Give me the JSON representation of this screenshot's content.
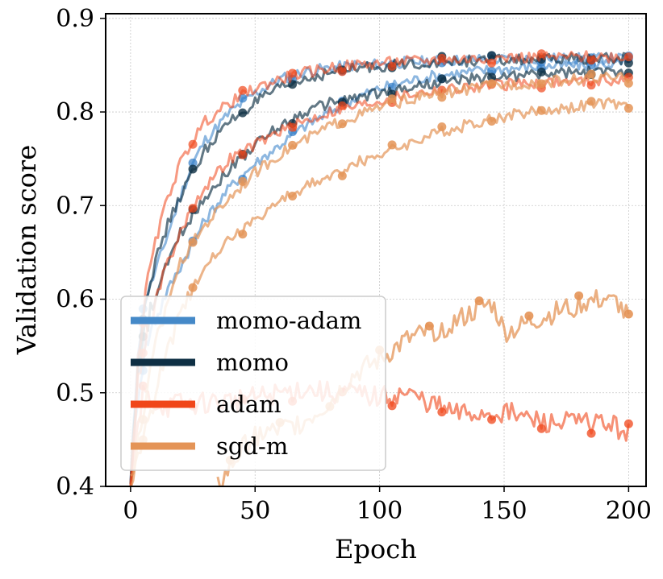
{
  "chart_data": {
    "type": "line",
    "title": "",
    "xlabel": "Epoch",
    "ylabel": "Validation score",
    "xlim": [
      -10,
      207
    ],
    "ylim": [
      0.4,
      0.905
    ],
    "xticks": [
      0,
      50,
      100,
      150,
      200
    ],
    "xtick_labels": [
      "0",
      "50",
      "100",
      "150",
      "200"
    ],
    "yticks": [
      0.4,
      0.5,
      0.6,
      0.7,
      0.8,
      0.9
    ],
    "ytick_labels": [
      "0.4",
      "0.5",
      "0.6",
      "0.7",
      "0.8",
      "0.9"
    ],
    "grid": true,
    "legend_position": "lower-left",
    "legend": [
      {
        "name": "momo-adam",
        "color": "#4589c8"
      },
      {
        "name": "momo",
        "color": "#0e2f44"
      },
      {
        "name": "adam",
        "color": "#f04619"
      },
      {
        "name": "sgd-m",
        "color": "#e49457"
      }
    ],
    "series": [
      {
        "name": "momo-adam",
        "color": "#2f7bc6",
        "alpha": 0.55,
        "x": [
          0,
          3,
          6,
          10,
          15,
          20,
          25,
          30,
          40,
          50,
          60,
          70,
          80,
          90,
          100,
          110,
          120,
          130,
          140,
          150,
          160,
          170,
          180,
          190,
          200
        ],
        "y": [
          0.4,
          0.55,
          0.6,
          0.63,
          0.67,
          0.71,
          0.745,
          0.77,
          0.8,
          0.82,
          0.835,
          0.843,
          0.847,
          0.85,
          0.851,
          0.853,
          0.854,
          0.855,
          0.856,
          0.856,
          0.857,
          0.857,
          0.857,
          0.857,
          0.857
        ]
      },
      {
        "name": "momo-adam",
        "color": "#2f7bc6",
        "alpha": 0.55,
        "x": [
          0,
          3,
          6,
          10,
          15,
          20,
          25,
          30,
          40,
          50,
          60,
          70,
          80,
          90,
          100,
          110,
          120,
          130,
          140,
          150,
          160,
          170,
          180,
          190,
          200
        ],
        "y": [
          0.4,
          0.5,
          0.55,
          0.58,
          0.61,
          0.635,
          0.66,
          0.685,
          0.72,
          0.745,
          0.765,
          0.785,
          0.8,
          0.815,
          0.825,
          0.832,
          0.838,
          0.841,
          0.844,
          0.846,
          0.848,
          0.849,
          0.85,
          0.851,
          0.852
        ]
      },
      {
        "name": "momo",
        "color": "#0e2f44",
        "alpha": 0.65,
        "x": [
          0,
          3,
          6,
          10,
          15,
          20,
          25,
          30,
          40,
          50,
          60,
          70,
          80,
          90,
          100,
          110,
          120,
          130,
          140,
          150,
          160,
          170,
          180,
          190,
          200
        ],
        "y": [
          0.4,
          0.54,
          0.6,
          0.64,
          0.68,
          0.71,
          0.735,
          0.76,
          0.79,
          0.81,
          0.825,
          0.835,
          0.842,
          0.846,
          0.849,
          0.851,
          0.853,
          0.854,
          0.855,
          0.855,
          0.856,
          0.856,
          0.857,
          0.857,
          0.857
        ]
      },
      {
        "name": "momo",
        "color": "#0e2f44",
        "alpha": 0.65,
        "x": [
          0,
          3,
          6,
          10,
          15,
          20,
          25,
          30,
          40,
          50,
          60,
          70,
          80,
          90,
          100,
          110,
          120,
          130,
          140,
          150,
          160,
          170,
          180,
          190,
          200
        ],
        "y": [
          0.4,
          0.52,
          0.57,
          0.6,
          0.64,
          0.67,
          0.69,
          0.71,
          0.74,
          0.765,
          0.785,
          0.8,
          0.81,
          0.815,
          0.82,
          0.825,
          0.83,
          0.833,
          0.836,
          0.838,
          0.84,
          0.841,
          0.842,
          0.843,
          0.844
        ]
      },
      {
        "name": "adam",
        "color": "#f04619",
        "alpha": 0.55,
        "x": [
          0,
          3,
          6,
          10,
          15,
          20,
          25,
          30,
          40,
          50,
          60,
          70,
          80,
          90,
          100,
          110,
          120,
          130,
          140,
          150,
          160,
          170,
          180,
          190,
          200
        ],
        "y": [
          0.4,
          0.53,
          0.61,
          0.66,
          0.71,
          0.745,
          0.77,
          0.79,
          0.81,
          0.825,
          0.835,
          0.842,
          0.847,
          0.85,
          0.852,
          0.854,
          0.855,
          0.856,
          0.857,
          0.858,
          0.858,
          0.858,
          0.859,
          0.859,
          0.859
        ]
      },
      {
        "name": "adam",
        "color": "#f04619",
        "alpha": 0.55,
        "x": [
          0,
          3,
          6,
          10,
          15,
          20,
          25,
          30,
          40,
          50,
          60,
          70,
          80,
          90,
          100,
          110,
          120,
          130,
          140,
          150,
          160,
          170,
          180,
          190,
          200
        ],
        "y": [
          0.4,
          0.51,
          0.56,
          0.6,
          0.64,
          0.67,
          0.7,
          0.72,
          0.75,
          0.765,
          0.78,
          0.79,
          0.8,
          0.806,
          0.812,
          0.818,
          0.822,
          0.825,
          0.827,
          0.829,
          0.831,
          0.832,
          0.833,
          0.834,
          0.835
        ]
      },
      {
        "name": "adam",
        "color": "#f04619",
        "alpha": 0.6,
        "x": [
          0,
          5,
          10,
          15,
          20,
          25,
          30,
          40,
          50,
          60,
          70,
          80,
          90,
          100,
          110,
          120,
          130,
          140,
          150,
          160,
          170,
          180,
          190,
          200
        ],
        "y": [
          0.4,
          0.5,
          0.49,
          0.485,
          0.49,
          0.488,
          0.49,
          0.492,
          0.495,
          0.5,
          0.505,
          0.5,
          0.5,
          0.495,
          0.5,
          0.49,
          0.478,
          0.478,
          0.48,
          0.472,
          0.467,
          0.468,
          0.469,
          0.458
        ]
      },
      {
        "name": "sgd-m",
        "color": "#e49457",
        "alpha": 0.7,
        "x": [
          0,
          5,
          10,
          15,
          20,
          25,
          30,
          40,
          50,
          60,
          70,
          80,
          90,
          100,
          110,
          120,
          130,
          140,
          150,
          160,
          170,
          180,
          190,
          200
        ],
        "y": [
          0.4,
          0.48,
          0.55,
          0.6,
          0.64,
          0.66,
          0.68,
          0.71,
          0.735,
          0.755,
          0.77,
          0.785,
          0.795,
          0.805,
          0.812,
          0.818,
          0.822,
          0.826,
          0.829,
          0.831,
          0.833,
          0.835,
          0.836,
          0.836
        ]
      },
      {
        "name": "sgd-m",
        "color": "#e49457",
        "alpha": 0.7,
        "x": [
          0,
          5,
          10,
          15,
          20,
          25,
          30,
          40,
          50,
          60,
          70,
          80,
          90,
          100,
          110,
          120,
          130,
          140,
          150,
          160,
          170,
          180,
          190,
          200
        ],
        "y": [
          0.4,
          0.45,
          0.5,
          0.55,
          0.58,
          0.61,
          0.64,
          0.665,
          0.685,
          0.705,
          0.72,
          0.73,
          0.745,
          0.755,
          0.765,
          0.775,
          0.782,
          0.79,
          0.795,
          0.8,
          0.803,
          0.806,
          0.809,
          0.807
        ]
      },
      {
        "name": "sgd-m",
        "color": "#e49457",
        "alpha": 0.75,
        "x": [
          35,
          40,
          45,
          50,
          60,
          70,
          80,
          90,
          100,
          110,
          120,
          130,
          140,
          145,
          148,
          150,
          155,
          160,
          170,
          175,
          180,
          190,
          195,
          198,
          200
        ],
        "y": [
          0.4,
          0.42,
          0.44,
          0.455,
          0.46,
          0.47,
          0.49,
          0.52,
          0.535,
          0.555,
          0.565,
          0.575,
          0.59,
          0.595,
          0.58,
          0.565,
          0.568,
          0.575,
          0.585,
          0.59,
          0.595,
          0.6,
          0.6,
          0.585,
          0.58
        ]
      }
    ]
  }
}
